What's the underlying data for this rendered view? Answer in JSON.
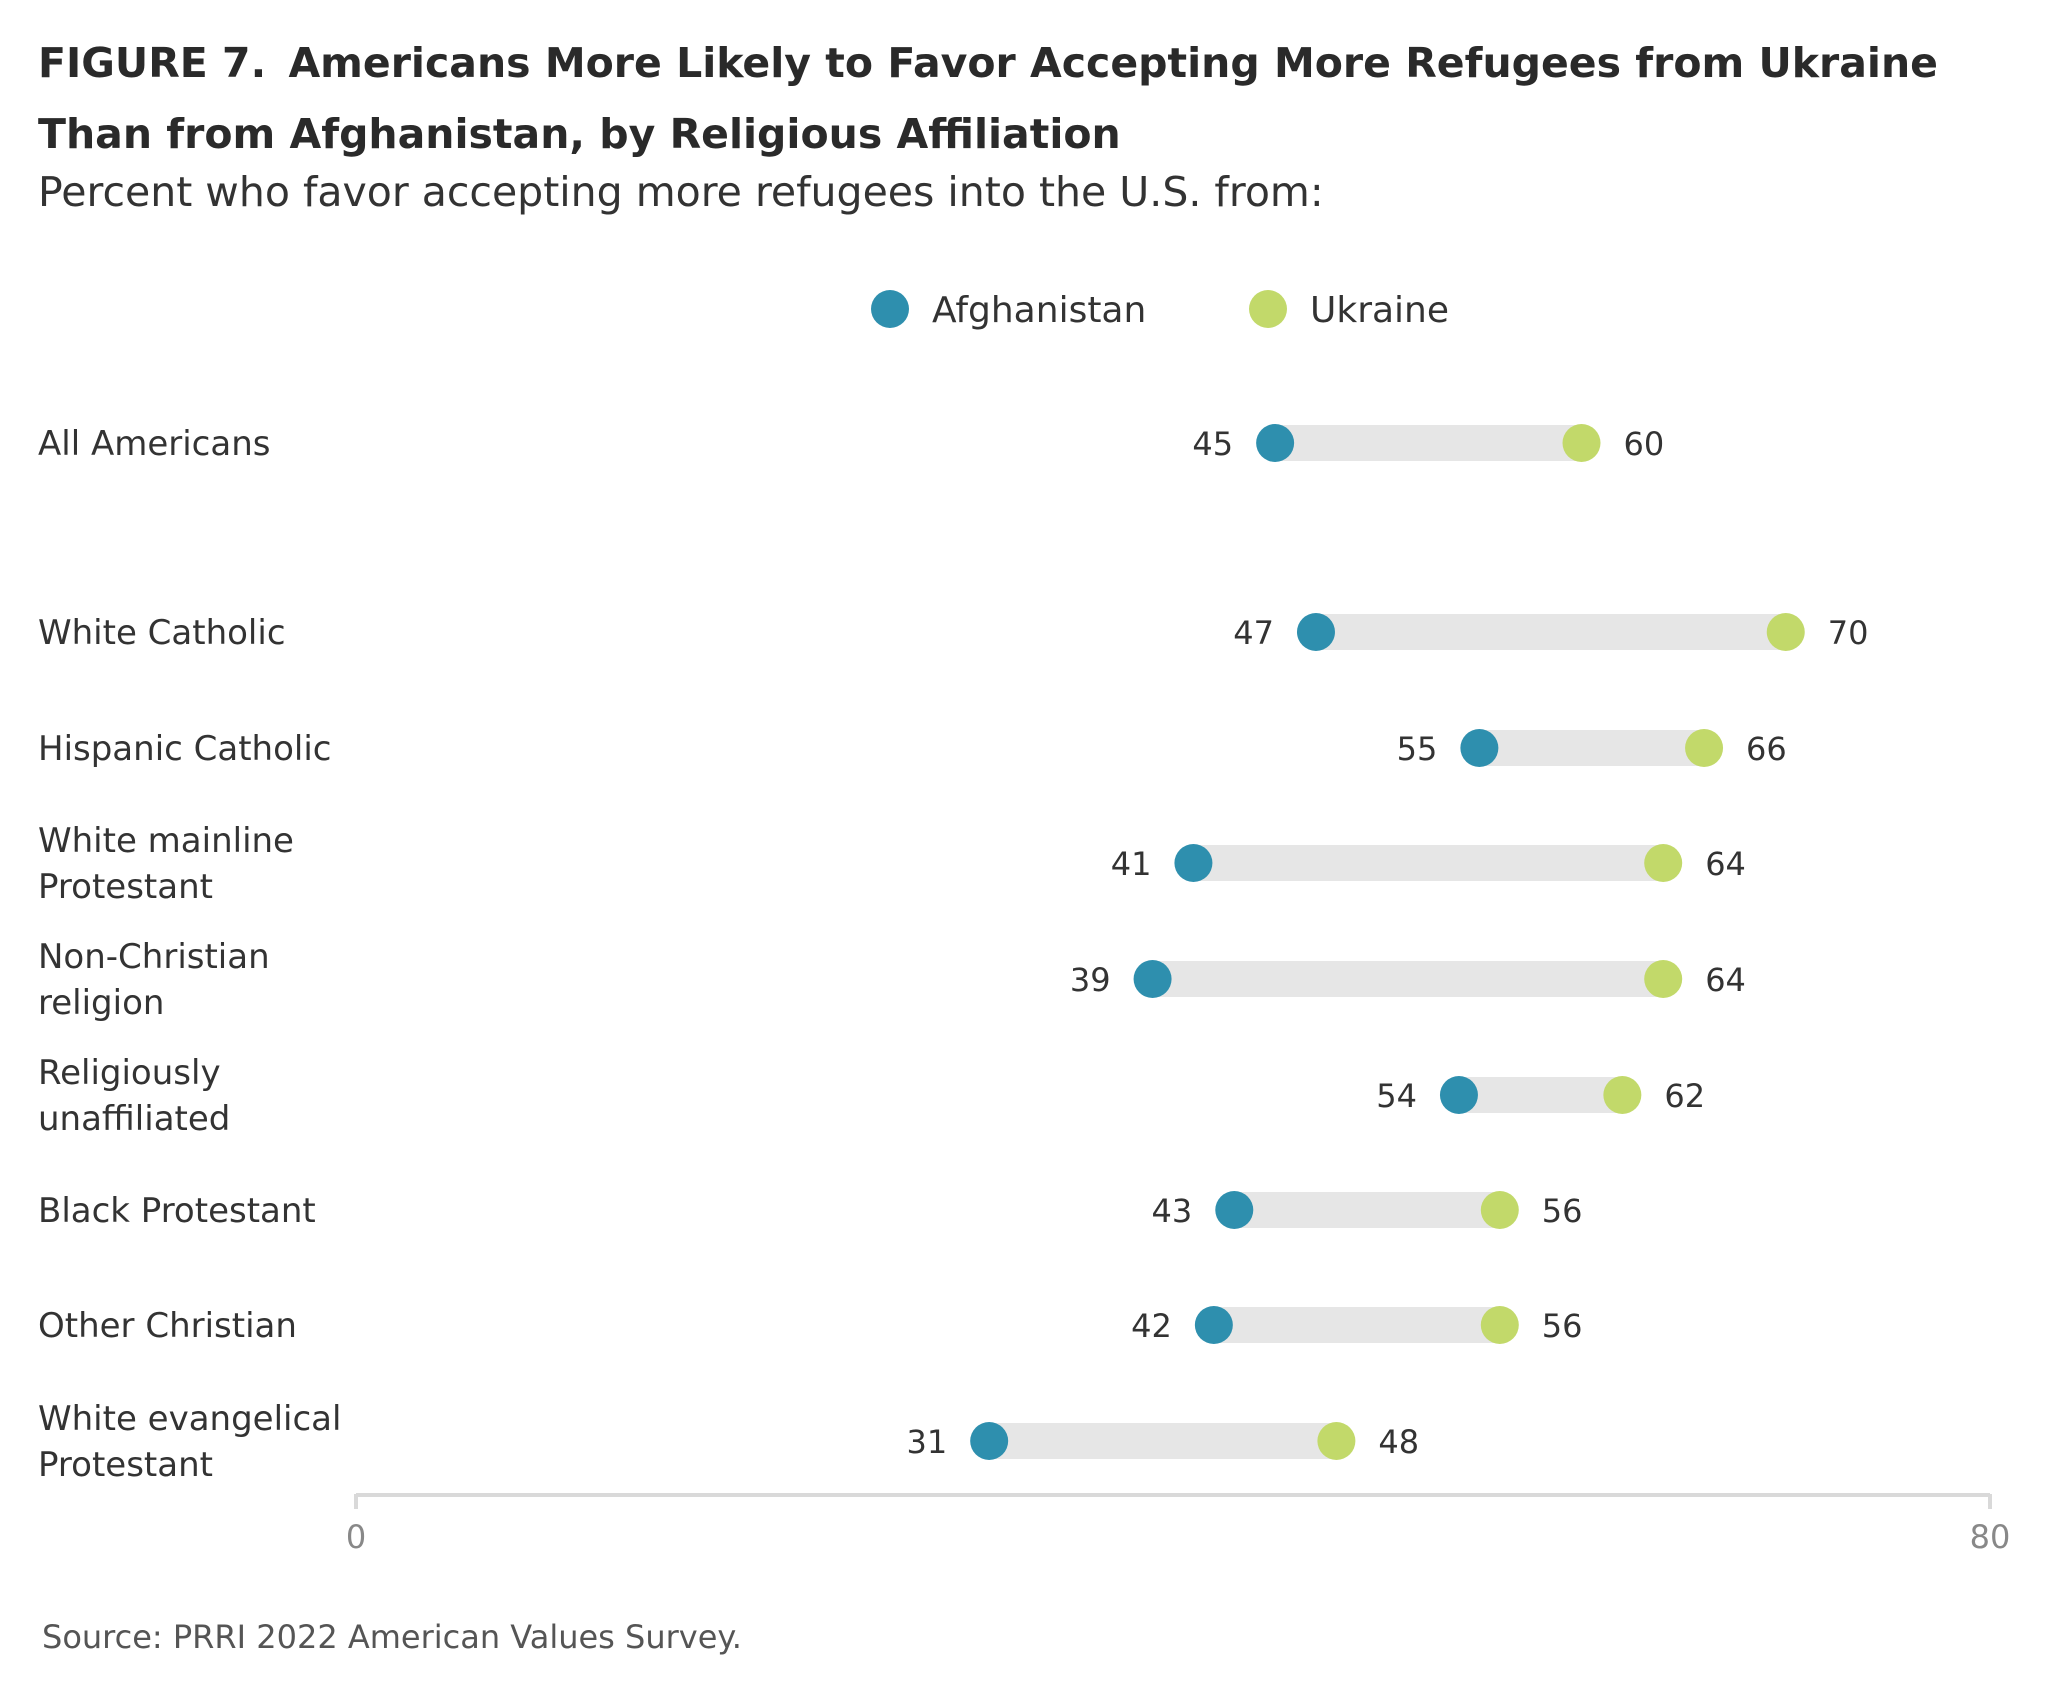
{
  "figure_label": "FIGURE 7.",
  "title": "Americans More Likely to Favor Accepting More Refugees from Ukraine Than from Afghanistan, by Religious Affiliation",
  "subtitle": "Percent who favor accepting more refugees into the U.S. from:",
  "source": "Source: PRRI 2022 American Values Survey.",
  "chart_data": {
    "type": "dumbbell",
    "title": "Americans More Likely to Favor Accepting More Refugees from Ukraine Than from Afghanistan, by Religious Affiliation",
    "subtitle": "Percent who favor accepting more refugees into the U.S. from:",
    "xlim": [
      0,
      80
    ],
    "x_ticks": [
      "0",
      "80"
    ],
    "legend_position": "top-center",
    "series": [
      {
        "name": "Afghanistan",
        "color": "#2e8fae"
      },
      {
        "name": "Ukraine",
        "color": "#c2d96a"
      }
    ],
    "categories": [
      {
        "label_lines": [
          "All Americans"
        ],
        "afghanistan": 45,
        "ukraine": 60
      },
      {
        "label_lines": [
          "White Catholic"
        ],
        "afghanistan": 47,
        "ukraine": 70
      },
      {
        "label_lines": [
          "Hispanic Catholic"
        ],
        "afghanistan": 55,
        "ukraine": 66
      },
      {
        "label_lines": [
          "White mainline",
          "Protestant"
        ],
        "afghanistan": 41,
        "ukraine": 64
      },
      {
        "label_lines": [
          "Non-Christian",
          "religion"
        ],
        "afghanistan": 39,
        "ukraine": 64
      },
      {
        "label_lines": [
          "Religiously",
          "unaffiliated"
        ],
        "afghanistan": 54,
        "ukraine": 62
      },
      {
        "label_lines": [
          "Black Protestant"
        ],
        "afghanistan": 43,
        "ukraine": 56
      },
      {
        "label_lines": [
          "Other Christian"
        ],
        "afghanistan": 42,
        "ukraine": 56
      },
      {
        "label_lines": [
          "White evangelical",
          "Protestant"
        ],
        "afghanistan": 31,
        "ukraine": 48
      }
    ]
  },
  "colors": {
    "bar": "#e6e6e6",
    "axis": "#d9d9d9",
    "tick_text": "#888888"
  }
}
